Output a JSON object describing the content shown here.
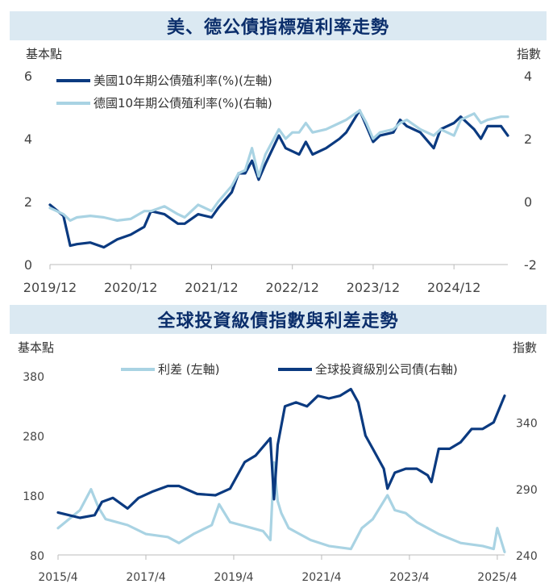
{
  "chart_data": [
    {
      "type": "line",
      "title": "美、德公債指標殖利率走勢",
      "ylabel_left": "基本點",
      "ylabel_right": "指數",
      "x_ticks": [
        "2019/12",
        "2020/12",
        "2021/12",
        "2022/12",
        "2023/12",
        "2024/12"
      ],
      "y_left_ticks": [
        "0",
        "2",
        "4",
        "6"
      ],
      "y_right_ticks": [
        "-2",
        "0",
        "2",
        "4"
      ],
      "ylim_left": [
        0,
        6
      ],
      "ylim_right": [
        -2,
        4
      ],
      "x_range": [
        "2019-12",
        "2025-08"
      ],
      "legend_position": "top-left",
      "series": [
        {
          "name": "美國10年期公債殖利率(%)(左軸)",
          "axis": "left",
          "color": "#0b3a80",
          "x": [
            "2019-12",
            "2020-02",
            "2020-03",
            "2020-04",
            "2020-06",
            "2020-08",
            "2020-10",
            "2020-12",
            "2021-02",
            "2021-03",
            "2021-05",
            "2021-07",
            "2021-08",
            "2021-10",
            "2021-12",
            "2022-01",
            "2022-03",
            "2022-04",
            "2022-05",
            "2022-06",
            "2022-07",
            "2022-08",
            "2022-10",
            "2022-11",
            "2022-12",
            "2023-01",
            "2023-02",
            "2023-03",
            "2023-05",
            "2023-07",
            "2023-08",
            "2023-10",
            "2023-11",
            "2023-12",
            "2024-01",
            "2024-03",
            "2024-04",
            "2024-05",
            "2024-07",
            "2024-09",
            "2024-10",
            "2024-12",
            "2025-01",
            "2025-03",
            "2025-04",
            "2025-05",
            "2025-07",
            "2025-08"
          ],
          "values": [
            1.9,
            1.55,
            0.6,
            0.65,
            0.7,
            0.55,
            0.8,
            0.95,
            1.2,
            1.7,
            1.6,
            1.3,
            1.3,
            1.6,
            1.5,
            1.8,
            2.3,
            2.9,
            2.9,
            3.3,
            2.7,
            3.2,
            4.1,
            3.7,
            3.6,
            3.5,
            3.9,
            3.5,
            3.7,
            4.0,
            4.2,
            4.9,
            4.4,
            3.9,
            4.1,
            4.2,
            4.6,
            4.4,
            4.2,
            3.7,
            4.3,
            4.5,
            4.7,
            4.3,
            4.0,
            4.4,
            4.4,
            4.1
          ]
        },
        {
          "name": "德國10年期公債殖利率(%)(右軸)",
          "axis": "right",
          "color": "#a9d3e3",
          "x": [
            "2019-12",
            "2020-02",
            "2020-03",
            "2020-04",
            "2020-06",
            "2020-08",
            "2020-10",
            "2020-12",
            "2021-02",
            "2021-03",
            "2021-05",
            "2021-07",
            "2021-08",
            "2021-10",
            "2021-12",
            "2022-01",
            "2022-03",
            "2022-04",
            "2022-05",
            "2022-06",
            "2022-07",
            "2022-08",
            "2022-10",
            "2022-11",
            "2022-12",
            "2023-01",
            "2023-02",
            "2023-03",
            "2023-05",
            "2023-07",
            "2023-08",
            "2023-10",
            "2023-11",
            "2023-12",
            "2024-01",
            "2024-03",
            "2024-04",
            "2024-05",
            "2024-07",
            "2024-09",
            "2024-10",
            "2024-12",
            "2025-01",
            "2025-03",
            "2025-04",
            "2025-05",
            "2025-07",
            "2025-08"
          ],
          "values": [
            -0.2,
            -0.4,
            -0.6,
            -0.5,
            -0.45,
            -0.5,
            -0.6,
            -0.55,
            -0.3,
            -0.3,
            -0.15,
            -0.4,
            -0.5,
            -0.1,
            -0.3,
            0.0,
            0.5,
            0.9,
            1.0,
            1.7,
            0.8,
            1.5,
            2.3,
            2.0,
            2.2,
            2.2,
            2.5,
            2.2,
            2.3,
            2.5,
            2.6,
            2.9,
            2.5,
            2.0,
            2.2,
            2.3,
            2.5,
            2.6,
            2.3,
            2.1,
            2.3,
            2.1,
            2.6,
            2.8,
            2.5,
            2.6,
            2.7,
            2.7
          ]
        }
      ]
    },
    {
      "type": "line",
      "title": "全球投資級債指數與利差走勢",
      "ylabel_left": "基本點",
      "ylabel_right": "指數",
      "x_ticks": [
        "2015/4",
        "2017/4",
        "2019/4",
        "2021/4",
        "2023/4",
        "2025/4"
      ],
      "y_left_ticks": [
        "80",
        "180",
        "280",
        "380"
      ],
      "y_right_ticks": [
        "240",
        "290",
        "340"
      ],
      "ylim_left": [
        80,
        380
      ],
      "ylim_right": [
        240,
        375
      ],
      "x_range": [
        "2015-04",
        "2025-06"
      ],
      "legend_position": "top-center",
      "series": [
        {
          "name": "利差 (左軸)",
          "axis": "left",
          "color": "#a9d3e3",
          "x": [
            "2015-04",
            "2015-07",
            "2015-10",
            "2016-01",
            "2016-03",
            "2016-05",
            "2016-08",
            "2016-11",
            "2017-04",
            "2017-10",
            "2018-01",
            "2018-05",
            "2018-10",
            "2018-12",
            "2019-03",
            "2019-06",
            "2019-09",
            "2019-12",
            "2020-02",
            "2020-03",
            "2020-04",
            "2020-05",
            "2020-07",
            "2020-10",
            "2021-01",
            "2021-06",
            "2021-12",
            "2022-03",
            "2022-06",
            "2022-09",
            "2022-10",
            "2022-12",
            "2023-03",
            "2023-06",
            "2023-12",
            "2024-06",
            "2024-12",
            "2025-03",
            "2025-04",
            "2025-06"
          ],
          "values": [
            125,
            140,
            155,
            190,
            160,
            140,
            135,
            130,
            115,
            110,
            100,
            115,
            130,
            165,
            135,
            130,
            125,
            120,
            105,
            235,
            170,
            150,
            125,
            115,
            105,
            95,
            90,
            125,
            140,
            170,
            180,
            155,
            150,
            135,
            115,
            100,
            95,
            90,
            125,
            85
          ]
        },
        {
          "name": "全球投資級別公司債(右軸)",
          "axis": "right",
          "color": "#0b3a80",
          "x": [
            "2015-04",
            "2015-10",
            "2016-02",
            "2016-04",
            "2016-07",
            "2016-11",
            "2017-02",
            "2017-06",
            "2017-10",
            "2018-01",
            "2018-06",
            "2018-11",
            "2019-03",
            "2019-07",
            "2019-10",
            "2020-02",
            "2020-03",
            "2020-04",
            "2020-06",
            "2020-09",
            "2020-12",
            "2021-03",
            "2021-06",
            "2021-09",
            "2021-12",
            "2022-02",
            "2022-04",
            "2022-06",
            "2022-09",
            "2022-10",
            "2022-12",
            "2023-03",
            "2023-06",
            "2023-09",
            "2023-10",
            "2023-12",
            "2024-03",
            "2024-06",
            "2024-09",
            "2024-12",
            "2025-03",
            "2025-06"
          ],
          "values": [
            272,
            268,
            270,
            280,
            283,
            275,
            283,
            288,
            292,
            292,
            286,
            285,
            290,
            310,
            315,
            328,
            282,
            323,
            352,
            355,
            352,
            360,
            358,
            360,
            365,
            355,
            330,
            320,
            305,
            290,
            302,
            305,
            305,
            300,
            295,
            320,
            320,
            325,
            335,
            335,
            340,
            360
          ]
        }
      ]
    }
  ]
}
